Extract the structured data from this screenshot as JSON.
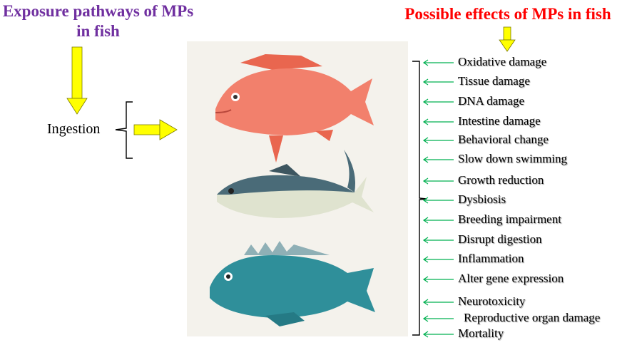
{
  "exposure_title": "Exposure pathways of MPs in fish",
  "effects_title": "Possible effects of MPs in fish",
  "pathway": "Ingestion",
  "effects": [
    "Oxidative damage",
    "Tissue damage",
    "DNA damage",
    "Intestine damage",
    "Behavioral change",
    "Slow down swimming",
    "Growth reduction",
    "Dysbiosis",
    "Breeding impairment",
    "Disrupt digestion",
    "Inflammation",
    "Alter gene expression",
    "Neurotoxicity",
    "Reproductive organ damage",
    "Mortality"
  ],
  "colors": {
    "exposure_title": "#7030A0",
    "effects_title": "#FF0000",
    "yellow_arrow": "#FFFF00",
    "green_arrow": "#00B050",
    "red_fish": "#F2806C",
    "tuna": "#4A6B78",
    "blue_fish": "#2F8F9A"
  }
}
